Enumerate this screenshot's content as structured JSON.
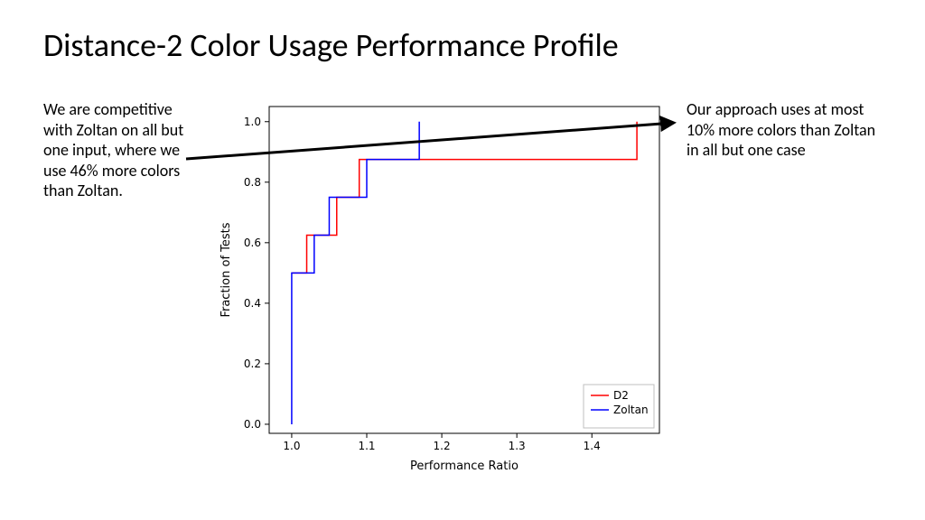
{
  "title": "Distance-2 Color Usage Performance Profile",
  "left_caption": "We are competitive with Zoltan on all but one input, where we use 46% more colors than Zoltan.",
  "right_caption": "Our approach uses at most 10% more colors than Zoltan in all but one case",
  "chart": {
    "type": "step-line",
    "xlabel": "Performance Ratio",
    "ylabel": "Fraction of Tests",
    "label_fontsize": 13,
    "tick_fontsize": 12,
    "xlim": [
      0.97,
      1.49
    ],
    "ylim": [
      -0.03,
      1.05
    ],
    "xticks": [
      1.0,
      1.1,
      1.2,
      1.3,
      1.4
    ],
    "yticks": [
      0.0,
      0.2,
      0.4,
      0.6,
      0.8,
      1.0
    ],
    "background_color": "#ffffff",
    "spine_color": "#000000",
    "tick_color": "#000000",
    "series": [
      {
        "name": "D2",
        "color": "#ff0000",
        "linewidth": 1.5,
        "points": [
          [
            1.0,
            0.5
          ],
          [
            1.02,
            0.5
          ],
          [
            1.02,
            0.625
          ],
          [
            1.06,
            0.625
          ],
          [
            1.06,
            0.75
          ],
          [
            1.09,
            0.75
          ],
          [
            1.09,
            0.875
          ],
          [
            1.46,
            0.875
          ],
          [
            1.46,
            1.0
          ]
        ]
      },
      {
        "name": "Zoltan",
        "color": "#0000ff",
        "linewidth": 1.5,
        "points": [
          [
            1.0,
            0.0
          ],
          [
            1.0,
            0.5
          ],
          [
            1.03,
            0.5
          ],
          [
            1.03,
            0.625
          ],
          [
            1.05,
            0.625
          ],
          [
            1.05,
            0.75
          ],
          [
            1.1,
            0.75
          ],
          [
            1.1,
            0.875
          ],
          [
            1.17,
            0.875
          ],
          [
            1.17,
            1.0
          ]
        ]
      }
    ],
    "legend": {
      "position": "lower-right",
      "border_color": "#bfbfbf",
      "background_color": "#ffffff",
      "items": [
        {
          "label": "D2",
          "color": "#ff0000"
        },
        {
          "label": "Zoltan",
          "color": "#0000ff"
        }
      ]
    }
  },
  "arrow": {
    "color": "#000000",
    "linewidth": 3,
    "start": [
      206,
      176
    ],
    "end": [
      746,
      136
    ]
  }
}
